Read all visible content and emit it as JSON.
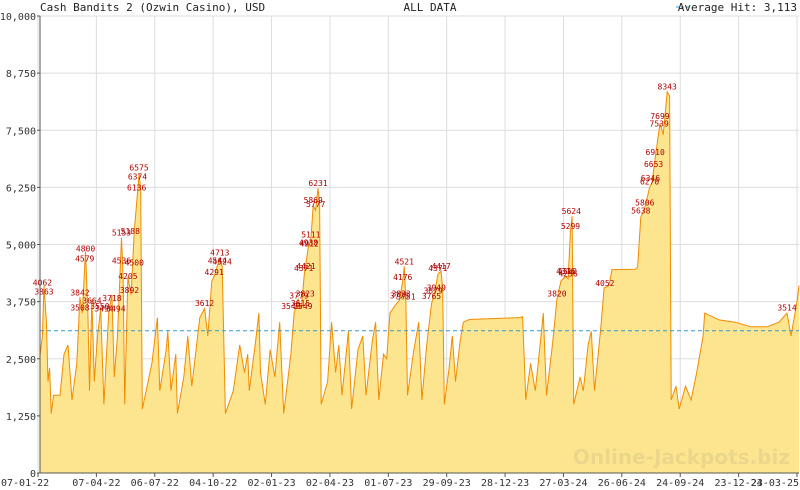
{
  "header": {
    "title": "Cash Bandits 2 (Ozwin Casino), USD",
    "center": "ALL DATA",
    "legend": "Average Hit: 3,113"
  },
  "watermark": "Online-Jackpots.biz",
  "colors": {
    "line": "#f08c00",
    "fill": "#fde58f",
    "average": "#3399cc",
    "grid": "#dddddd",
    "peak_label": "#b00000"
  },
  "chart_data": {
    "type": "area",
    "title": "Cash Bandits 2 (Ozwin Casino), USD",
    "subtitle": "ALL DATA",
    "xlabel": "",
    "ylabel": "",
    "ylim": [
      0,
      10000
    ],
    "y_ticks": [
      0,
      1250,
      2500,
      3750,
      5000,
      6250,
      7500,
      8750,
      10000
    ],
    "y_tick_labels": [
      "0",
      "1,250",
      "2,500",
      "3,750",
      "5,000",
      "6,250",
      "7,500",
      "8,750",
      "10,000"
    ],
    "x_tick_labels": [
      "07-01-22",
      "07-04-22",
      "06-07-22",
      "04-10-22",
      "02-01-23",
      "02-04-23",
      "01-07-23",
      "29-09-23",
      "28-12-23",
      "27-03-24",
      "26-06-24",
      "24-09-24",
      "23-12-24",
      "23-03-25"
    ],
    "x_range": [
      "07-01-22",
      "23-03-25"
    ],
    "grid": true,
    "legend_position": "top-right",
    "average_hit": 3113,
    "peak_labels": [
      {
        "day": 3,
        "value": 4062
      },
      {
        "day": 5,
        "value": 3863
      },
      {
        "day": 50,
        "value": 3842
      },
      {
        "day": 50,
        "value": 3508
      },
      {
        "day": 56,
        "value": 4579
      },
      {
        "day": 57,
        "value": 4800
      },
      {
        "day": 65,
        "value": 3664
      },
      {
        "day": 75,
        "value": 3550
      },
      {
        "day": 80,
        "value": 3494
      },
      {
        "day": 90,
        "value": 3718
      },
      {
        "day": 95,
        "value": 3494
      },
      {
        "day": 102,
        "value": 5153
      },
      {
        "day": 102,
        "value": 4536
      },
      {
        "day": 110,
        "value": 4205
      },
      {
        "day": 112,
        "value": 3892
      },
      {
        "day": 113,
        "value": 5188
      },
      {
        "day": 118,
        "value": 4500
      },
      {
        "day": 121,
        "value": 6136
      },
      {
        "day": 122,
        "value": 6374
      },
      {
        "day": 124,
        "value": 6575
      },
      {
        "day": 206,
        "value": 3612
      },
      {
        "day": 218,
        "value": 4291
      },
      {
        "day": 222,
        "value": 4544
      },
      {
        "day": 225,
        "value": 4713
      },
      {
        "day": 228,
        "value": 4524
      },
      {
        "day": 314,
        "value": 3549
      },
      {
        "day": 324,
        "value": 3779
      },
      {
        "day": 326,
        "value": 3615
      },
      {
        "day": 329,
        "value": 3549
      },
      {
        "day": 330,
        "value": 4371
      },
      {
        "day": 332,
        "value": 3823
      },
      {
        "day": 333,
        "value": 4421
      },
      {
        "day": 336,
        "value": 4938
      },
      {
        "day": 337,
        "value": 4912
      },
      {
        "day": 339,
        "value": 5111
      },
      {
        "day": 342,
        "value": 5869
      },
      {
        "day": 345,
        "value": 5777
      },
      {
        "day": 348,
        "value": 6231
      },
      {
        "day": 450,
        "value": 3775
      },
      {
        "day": 452,
        "value": 3823
      },
      {
        "day": 454,
        "value": 4176
      },
      {
        "day": 456,
        "value": 4521
      },
      {
        "day": 458,
        "value": 3751
      },
      {
        "day": 490,
        "value": 3765
      },
      {
        "day": 492,
        "value": 3879
      },
      {
        "day": 496,
        "value": 3949
      },
      {
        "day": 498,
        "value": 4371
      },
      {
        "day": 502,
        "value": 4417
      },
      {
        "day": 647,
        "value": 3820
      },
      {
        "day": 658,
        "value": 4316
      },
      {
        "day": 660,
        "value": 4310
      },
      {
        "day": 661,
        "value": 4256
      },
      {
        "day": 664,
        "value": 5299
      },
      {
        "day": 665,
        "value": 5624
      },
      {
        "day": 707,
        "value": 4052
      },
      {
        "day": 752,
        "value": 5638
      },
      {
        "day": 757,
        "value": 5806
      },
      {
        "day": 763,
        "value": 6270
      },
      {
        "day": 764,
        "value": 6346
      },
      {
        "day": 768,
        "value": 6653
      },
      {
        "day": 770,
        "value": 6910
      },
      {
        "day": 775,
        "value": 7539
      },
      {
        "day": 776,
        "value": 7699
      },
      {
        "day": 785,
        "value": 8343
      },
      {
        "day": 935,
        "value": 3514
      }
    ],
    "series": [
      {
        "values": [
          [
            0,
            2560
          ],
          [
            3,
            3000
          ],
          [
            5,
            4100
          ],
          [
            8,
            3300
          ],
          [
            10,
            2000
          ],
          [
            12,
            2300
          ],
          [
            14,
            1300
          ],
          [
            17,
            1700
          ],
          [
            25,
            1700
          ],
          [
            30,
            2600
          ],
          [
            35,
            2800
          ],
          [
            40,
            1600
          ],
          [
            46,
            2400
          ],
          [
            50,
            3850
          ],
          [
            53,
            3500
          ],
          [
            57,
            4850
          ],
          [
            60,
            3500
          ],
          [
            62,
            1800
          ],
          [
            65,
            3800
          ],
          [
            68,
            2000
          ],
          [
            72,
            3000
          ],
          [
            76,
            3600
          ],
          [
            80,
            1500
          ],
          [
            86,
            3500
          ],
          [
            90,
            3900
          ],
          [
            93,
            2100
          ],
          [
            97,
            3000
          ],
          [
            102,
            5150
          ],
          [
            104,
            4300
          ],
          [
            106,
            1500
          ],
          [
            110,
            4300
          ],
          [
            114,
            3900
          ],
          [
            118,
            5300
          ],
          [
            124,
            6550
          ],
          [
            126,
            6200
          ],
          [
            128,
            1400
          ],
          [
            140,
            2400
          ],
          [
            147,
            3400
          ],
          [
            150,
            1800
          ],
          [
            158,
            2700
          ],
          [
            160,
            3100
          ],
          [
            164,
            1800
          ],
          [
            170,
            2600
          ],
          [
            172,
            1300
          ],
          [
            180,
            2100
          ],
          [
            185,
            3000
          ],
          [
            190,
            1900
          ],
          [
            196,
            2800
          ],
          [
            200,
            3400
          ],
          [
            206,
            3600
          ],
          [
            210,
            3000
          ],
          [
            215,
            4200
          ],
          [
            218,
            4300
          ],
          [
            222,
            4540
          ],
          [
            225,
            4700
          ],
          [
            228,
            4520
          ],
          [
            232,
            1300
          ],
          [
            242,
            1800
          ],
          [
            250,
            2800
          ],
          [
            256,
            2200
          ],
          [
            260,
            2600
          ],
          [
            262,
            1800
          ],
          [
            270,
            2900
          ],
          [
            274,
            3500
          ],
          [
            276,
            2200
          ],
          [
            282,
            1500
          ],
          [
            288,
            2700
          ],
          [
            294,
            2100
          ],
          [
            300,
            3300
          ],
          [
            305,
            1300
          ],
          [
            314,
            2600
          ],
          [
            318,
            3500
          ],
          [
            323,
            3800
          ],
          [
            327,
            3600
          ],
          [
            331,
            4400
          ],
          [
            336,
            4950
          ],
          [
            339,
            5100
          ],
          [
            342,
            5850
          ],
          [
            345,
            5750
          ],
          [
            348,
            6230
          ],
          [
            350,
            5900
          ],
          [
            352,
            1500
          ],
          [
            360,
            2000
          ],
          [
            365,
            3300
          ],
          [
            370,
            2200
          ],
          [
            374,
            2800
          ],
          [
            378,
            1700
          ],
          [
            386,
            3100
          ],
          [
            390,
            1400
          ],
          [
            398,
            2700
          ],
          [
            404,
            3000
          ],
          [
            408,
            1700
          ],
          [
            416,
            2900
          ],
          [
            420,
            3300
          ],
          [
            424,
            1600
          ],
          [
            430,
            2600
          ],
          [
            434,
            2500
          ],
          [
            438,
            3500
          ],
          [
            446,
            3700
          ],
          [
            450,
            3780
          ],
          [
            454,
            4200
          ],
          [
            456,
            4520
          ],
          [
            458,
            3750
          ],
          [
            460,
            1700
          ],
          [
            468,
            2700
          ],
          [
            474,
            3300
          ],
          [
            478,
            1600
          ],
          [
            484,
            2800
          ],
          [
            490,
            3700
          ],
          [
            494,
            3950
          ],
          [
            498,
            4350
          ],
          [
            502,
            4420
          ],
          [
            504,
            4000
          ],
          [
            506,
            1500
          ],
          [
            512,
            2300
          ],
          [
            516,
            3000
          ],
          [
            520,
            2000
          ],
          [
            526,
            2900
          ],
          [
            530,
            3300
          ],
          [
            536,
            3350
          ],
          [
            540,
            3360
          ],
          [
            600,
            3400
          ],
          [
            604,
            3420
          ],
          [
            608,
            1600
          ],
          [
            614,
            2400
          ],
          [
            620,
            1800
          ],
          [
            626,
            2800
          ],
          [
            630,
            3500
          ],
          [
            634,
            1700
          ],
          [
            642,
            2900
          ],
          [
            647,
            3800
          ],
          [
            652,
            4200
          ],
          [
            658,
            4300
          ],
          [
            661,
            4250
          ],
          [
            664,
            5300
          ],
          [
            666,
            5620
          ],
          [
            668,
            1500
          ],
          [
            676,
            2100
          ],
          [
            680,
            1800
          ],
          [
            686,
            2800
          ],
          [
            690,
            3100
          ],
          [
            694,
            1800
          ],
          [
            702,
            3200
          ],
          [
            706,
            4050
          ],
          [
            712,
            4100
          ],
          [
            716,
            4450
          ],
          [
            745,
            4460
          ],
          [
            748,
            4500
          ],
          [
            752,
            5600
          ],
          [
            757,
            5800
          ],
          [
            763,
            6250
          ],
          [
            766,
            6350
          ],
          [
            770,
            6900
          ],
          [
            776,
            7650
          ],
          [
            780,
            7400
          ],
          [
            785,
            8340
          ],
          [
            788,
            8250
          ],
          [
            790,
            1600
          ],
          [
            796,
            1900
          ],
          [
            800,
            1400
          ],
          [
            808,
            1900
          ],
          [
            815,
            1600
          ],
          [
            822,
            2200
          ],
          [
            830,
            3000
          ],
          [
            832,
            3500
          ],
          [
            850,
            3350
          ],
          [
            870,
            3300
          ],
          [
            890,
            3200
          ],
          [
            910,
            3200
          ],
          [
            925,
            3300
          ],
          [
            935,
            3500
          ],
          [
            940,
            3000
          ],
          [
            948,
            3800
          ],
          [
            950,
            4100
          ]
        ]
      }
    ]
  }
}
